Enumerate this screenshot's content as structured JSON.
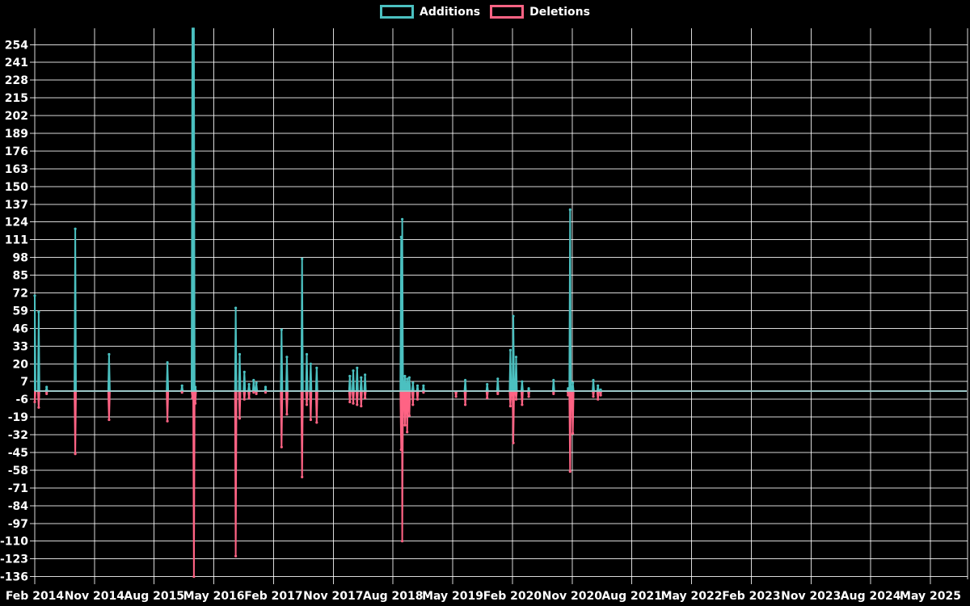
{
  "chart_data": {
    "type": "line",
    "title": "",
    "description": "Weekly additions/deletions code-frequency chart on black background",
    "legend": [
      {
        "label": "Additions",
        "color": "#4bc0c0"
      },
      {
        "label": "Deletions",
        "color": "#ff6384"
      }
    ],
    "colors": {
      "additions": "#4bc0c0",
      "deletions": "#ff6384",
      "grid": "rgba(255,255,255,0.85)",
      "text": "#ffffff",
      "baseline_line": "#a5c8c8",
      "background": "#000000"
    },
    "x_ticks": [
      "Feb 2014",
      "Nov 2014",
      "Aug 2015",
      "May 2016",
      "Feb 2017",
      "Nov 2017",
      "Aug 2018",
      "May 2019",
      "Feb 2020",
      "Nov 2020",
      "Aug 2021",
      "May 2022",
      "Feb 2023",
      "Nov 2023",
      "Aug 2024",
      "May 2025"
    ],
    "y_ticks": [
      254,
      241,
      228,
      215,
      202,
      189,
      176,
      163,
      150,
      137,
      124,
      111,
      98,
      85,
      72,
      59,
      46,
      33,
      20,
      7,
      -6,
      -19,
      -32,
      -45,
      -58,
      -71,
      -84,
      -97,
      -110,
      -123,
      -136
    ],
    "y_axis_range": [
      -138,
      266
    ],
    "y_tick_step": 13,
    "baseline_value": 0,
    "grid": true,
    "legend_position": "top-center",
    "events": [
      {
        "date": "2014-02-01",
        "additions": 70,
        "deletions": -8
      },
      {
        "date": "2014-02-19",
        "additions": 58,
        "deletions": -12
      },
      {
        "date": "2014-03-25",
        "additions": 3,
        "deletions": -2
      },
      {
        "date": "2014-08-04",
        "additions": 119,
        "deletions": -46
      },
      {
        "date": "2015-01-07",
        "additions": 27,
        "deletions": -21
      },
      {
        "date": "2015-10-01",
        "additions": 21,
        "deletions": -22
      },
      {
        "date": "2015-12-07",
        "additions": 4,
        "deletions": -1
      },
      {
        "date": "2016-01-24",
        "additions": 270,
        "deletions": -5
      },
      {
        "date": "2016-01-31",
        "additions": 270,
        "deletions": -136
      },
      {
        "date": "2016-02-07",
        "additions": 3,
        "deletions": -9
      },
      {
        "date": "2016-08-10",
        "additions": 61,
        "deletions": -121
      },
      {
        "date": "2016-08-28",
        "additions": 27,
        "deletions": -20
      },
      {
        "date": "2016-09-19",
        "additions": 14,
        "deletions": -6
      },
      {
        "date": "2016-10-10",
        "additions": 5,
        "deletions": -5
      },
      {
        "date": "2016-11-01",
        "additions": 8,
        "deletions": -1
      },
      {
        "date": "2016-11-13",
        "additions": 6,
        "deletions": -2
      },
      {
        "date": "2016-12-25",
        "additions": 3,
        "deletions": -1
      },
      {
        "date": "2017-03-07",
        "additions": 45,
        "deletions": -41
      },
      {
        "date": "2017-04-01",
        "additions": 25,
        "deletions": -17
      },
      {
        "date": "2017-06-10",
        "additions": 97,
        "deletions": -63
      },
      {
        "date": "2017-07-01",
        "additions": 27,
        "deletions": -10
      },
      {
        "date": "2017-07-19",
        "additions": 20,
        "deletions": -21
      },
      {
        "date": "2017-08-16",
        "additions": 17,
        "deletions": -23
      },
      {
        "date": "2018-01-16",
        "additions": 11,
        "deletions": -8
      },
      {
        "date": "2018-02-01",
        "additions": 15,
        "deletions": -9
      },
      {
        "date": "2018-02-19",
        "additions": 17,
        "deletions": -10
      },
      {
        "date": "2018-03-07",
        "additions": 10,
        "deletions": -11
      },
      {
        "date": "2018-03-25",
        "additions": 12,
        "deletions": -5
      },
      {
        "date": "2018-09-08",
        "additions": 113,
        "deletions": -43
      },
      {
        "date": "2018-09-13",
        "additions": 126,
        "deletions": -110
      },
      {
        "date": "2018-09-25",
        "additions": 11,
        "deletions": -25
      },
      {
        "date": "2018-10-05",
        "additions": 9,
        "deletions": -30
      },
      {
        "date": "2018-10-15",
        "additions": 10,
        "deletions": -18
      },
      {
        "date": "2018-11-01",
        "additions": 6,
        "deletions": -10
      },
      {
        "date": "2018-11-22",
        "additions": 4,
        "deletions": -6
      },
      {
        "date": "2018-12-19",
        "additions": 4,
        "deletions": -1
      },
      {
        "date": "2019-05-16",
        "additions": 0,
        "deletions": -4
      },
      {
        "date": "2019-06-28",
        "additions": 8,
        "deletions": -10
      },
      {
        "date": "2019-10-07",
        "additions": 5,
        "deletions": -5
      },
      {
        "date": "2019-11-25",
        "additions": 9,
        "deletions": -2
      },
      {
        "date": "2020-01-22",
        "additions": 30,
        "deletions": -11
      },
      {
        "date": "2020-02-05",
        "additions": 55,
        "deletions": -38
      },
      {
        "date": "2020-02-18",
        "additions": 25,
        "deletions": -6
      },
      {
        "date": "2020-03-15",
        "additions": 7,
        "deletions": -10
      },
      {
        "date": "2020-04-15",
        "additions": 2,
        "deletions": -4
      },
      {
        "date": "2020-08-07",
        "additions": 8,
        "deletions": -2
      },
      {
        "date": "2020-10-13",
        "additions": 2,
        "deletions": -3
      },
      {
        "date": "2020-10-22",
        "additions": 133,
        "deletions": -59
      },
      {
        "date": "2020-11-04",
        "additions": 6,
        "deletions": -31
      },
      {
        "date": "2021-02-07",
        "additions": 8,
        "deletions": -4
      },
      {
        "date": "2021-02-28",
        "additions": 4,
        "deletions": -6
      },
      {
        "date": "2021-03-10",
        "additions": 1,
        "deletions": -3
      }
    ]
  }
}
